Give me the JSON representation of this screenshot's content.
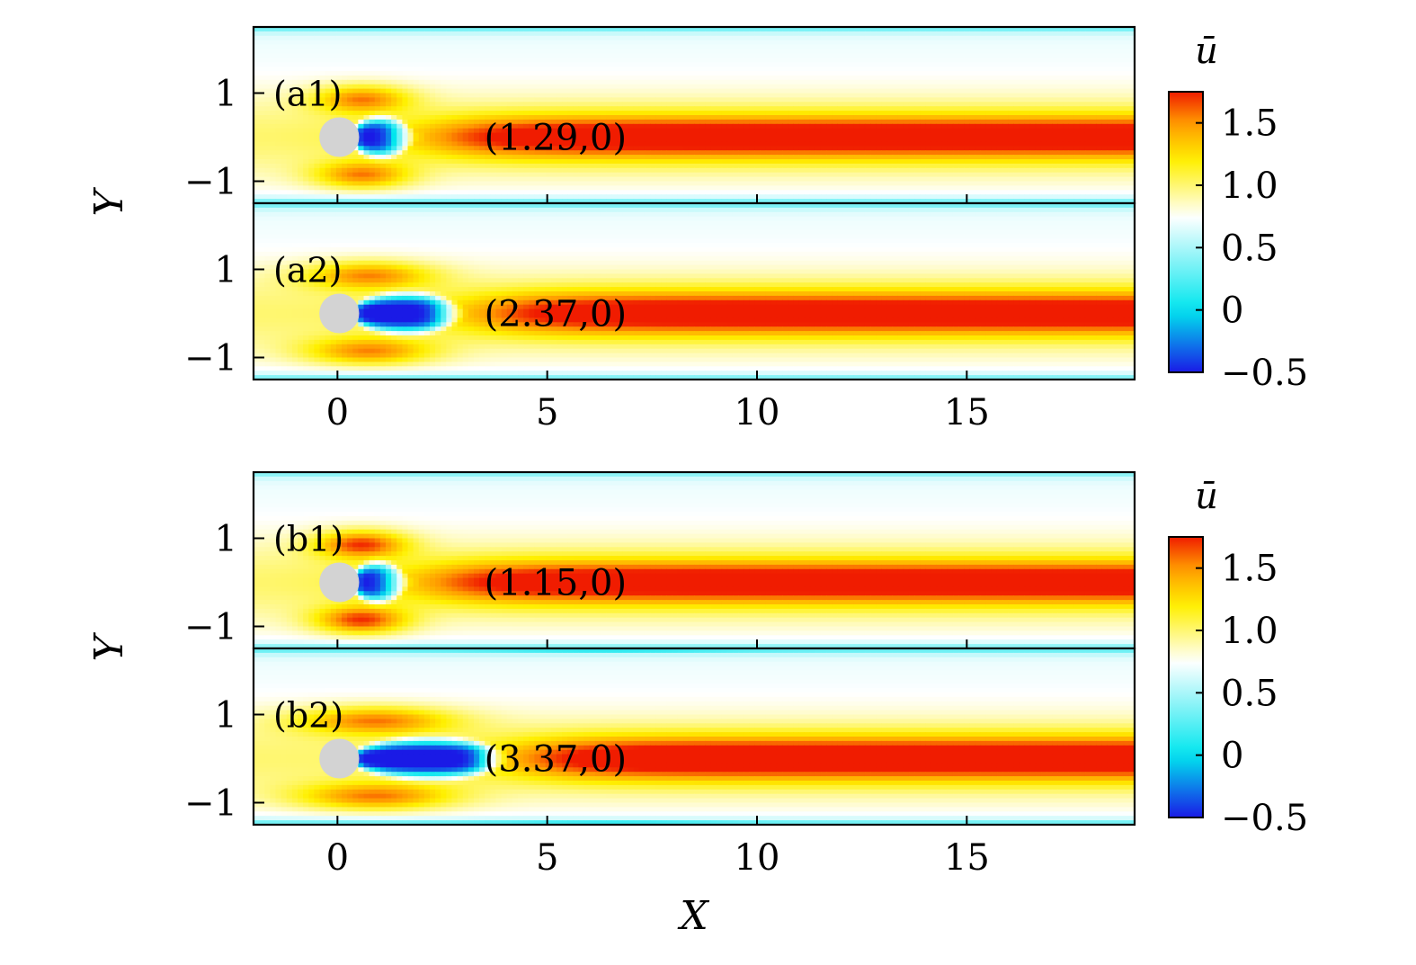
{
  "chart_data": {
    "type": "heatmap",
    "colormap": [
      "#1a1ae6",
      "#00e6ee",
      "#ffffff",
      "#fff000",
      "#ff9a00",
      "#f01c00"
    ],
    "colormap_stops": [
      -0.5,
      0.0,
      0.75,
      1.2,
      1.5,
      1.75
    ],
    "obstacle_color": "#d3d3d3",
    "cylinder": {
      "x": 0,
      "y": 0,
      "r": 0.5
    },
    "xlim": [
      -2,
      19
    ],
    "ylim": [
      -1.5,
      2.5
    ],
    "figures": [
      {
        "xlabel": "",
        "ylabel": "Y",
        "x_ticks": [
          "0",
          "5",
          "10",
          "15"
        ],
        "x_tick_values": [
          0,
          5,
          10,
          15
        ],
        "y_ticks": [
          "1",
          "−1"
        ],
        "y_tick_values": [
          1,
          -1
        ],
        "colorbar": {
          "title": "ū",
          "ticks": [
            "1.5",
            "1.0",
            "0.5",
            "0",
            "−0.5"
          ],
          "tick_values": [
            1.5,
            1.0,
            0.5,
            0.0,
            -0.5
          ],
          "range": [
            -0.5,
            1.75
          ]
        },
        "panels": [
          {
            "label": "(a1)",
            "annotation": "(1.29,0)",
            "recirc_length": 1.29,
            "wake_peak": 1.45,
            "jet": 1.72,
            "side_min": 0.1,
            "inner_blue": false
          },
          {
            "label": "(a2)",
            "annotation": "(2.37,0)",
            "recirc_length": 2.37,
            "wake_peak": 1.42,
            "jet": 1.72,
            "side_min": 0.12,
            "inner_blue": false
          }
        ]
      },
      {
        "xlabel": "X",
        "ylabel": "Y",
        "x_ticks": [
          "0",
          "5",
          "10",
          "15"
        ],
        "x_tick_values": [
          0,
          5,
          10,
          15
        ],
        "y_ticks": [
          "1",
          "−1"
        ],
        "y_tick_values": [
          1,
          -1
        ],
        "colorbar": {
          "title": "ū",
          "ticks": [
            "1.5",
            "1.0",
            "0.5",
            "0",
            "−0.5"
          ],
          "tick_values": [
            1.5,
            1.0,
            0.5,
            0.0,
            -0.5
          ],
          "range": [
            -0.5,
            1.75
          ]
        },
        "panels": [
          {
            "label": "(b1)",
            "annotation": "(1.15,0)",
            "recirc_length": 1.15,
            "wake_peak": 1.62,
            "jet": 1.72,
            "side_min": 0.2,
            "inner_blue": false
          },
          {
            "label": "(b2)",
            "annotation": "(3.37,0)",
            "recirc_length": 3.37,
            "wake_peak": 1.45,
            "jet": 1.78,
            "side_min": 0.05,
            "inner_blue": true
          }
        ]
      }
    ]
  }
}
